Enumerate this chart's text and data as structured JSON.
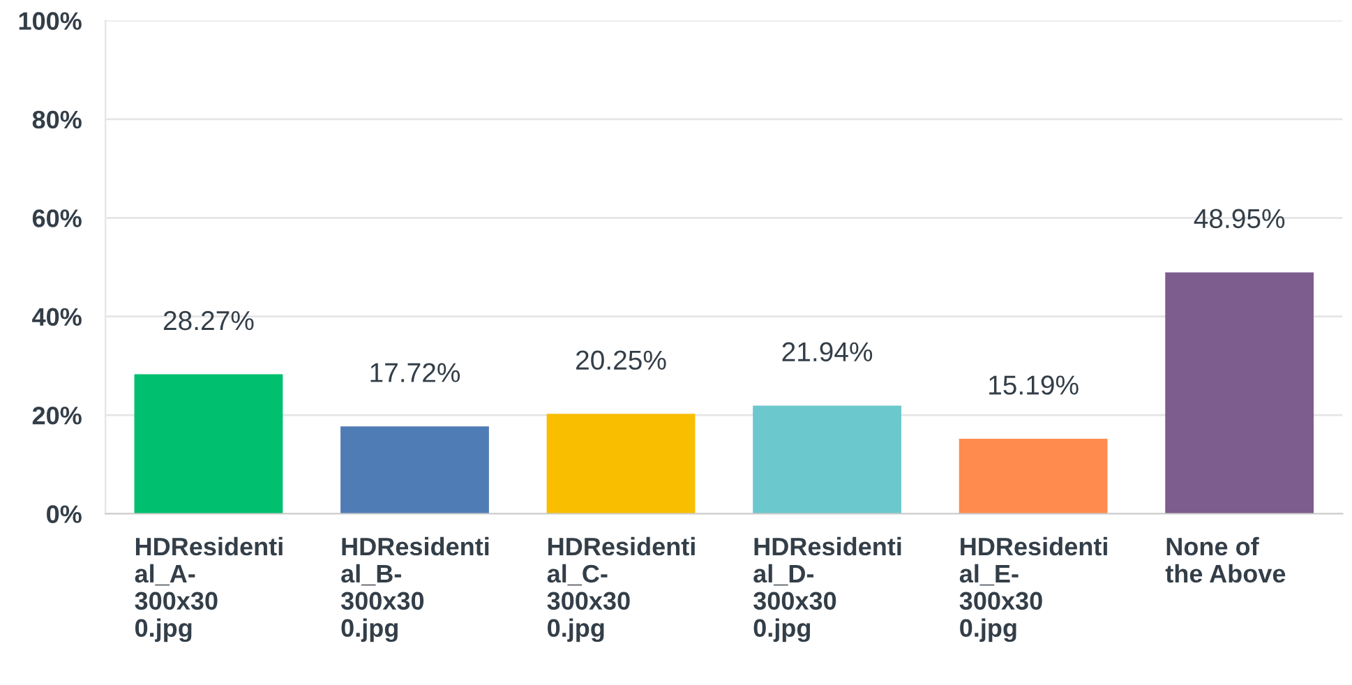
{
  "chart_data": {
    "type": "bar",
    "categories": [
      "HDResidenti\nal_A-\n300x30\n0.jpg",
      "HDResidenti\nal_B-\n300x30\n0.jpg",
      "HDResidenti\nal_C-\n300x30\n0.jpg",
      "HDResidenti\nal_D-\n300x30\n0.jpg",
      "HDResidenti\nal_E-\n300x30\n0.jpg",
      "None of\nthe Above"
    ],
    "values": [
      28.27,
      17.72,
      20.25,
      21.94,
      15.19,
      48.95
    ],
    "colors": [
      "#00bf6f",
      "#507cb6",
      "#f9be00",
      "#6bc8cd",
      "#ff8b4f",
      "#7d5c8e"
    ],
    "value_labels": [
      "28.27%",
      "17.72%",
      "20.25%",
      "21.94%",
      "15.19%",
      "48.95%"
    ],
    "ylim": [
      0,
      100
    ],
    "yticks": [
      {
        "value": 0,
        "label": "0%"
      },
      {
        "value": 20,
        "label": "20%"
      },
      {
        "value": 40,
        "label": "40%"
      },
      {
        "value": 60,
        "label": "60%"
      },
      {
        "value": 80,
        "label": "80%"
      },
      {
        "value": 100,
        "label": "100%"
      }
    ],
    "grid": "y"
  }
}
